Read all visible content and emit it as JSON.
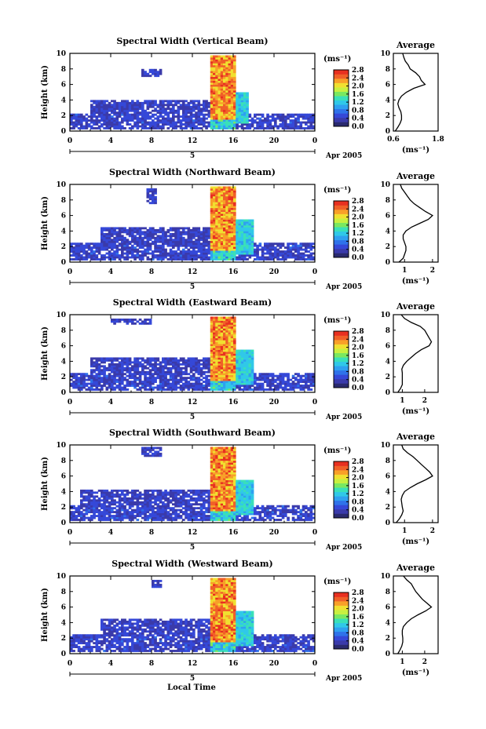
{
  "colors": {
    "scale": [
      "#2a2a6e",
      "#3a3aaa",
      "#3548d8",
      "#2f72ea",
      "#2fa0f0",
      "#30c8e8",
      "#3ae0b8",
      "#7ae860",
      "#c8f040",
      "#f0e030",
      "#f8a028",
      "#f06028",
      "#e83020"
    ],
    "ink": "#000000",
    "background": "#ffffff"
  },
  "xlabel": "Local Time",
  "ylabel": "Height (km)",
  "month_label": "Apr 2005",
  "day_label": "5",
  "avg_title": "Average",
  "avg_xlabel": "(ms⁻¹)",
  "colorbar_unit": "(ms⁻¹)",
  "colorbar_ticks": [
    "0.0",
    "0.4",
    "0.8",
    "1.2",
    "1.6",
    "2.0",
    "2.4",
    "2.8"
  ],
  "x_ticks": [
    "0",
    "4",
    "8",
    "12",
    "16",
    "20",
    "0"
  ],
  "y_ticks": [
    "0",
    "2",
    "4",
    "6",
    "8",
    "10"
  ],
  "chart_data": [
    {
      "type": "heatmap",
      "title": "Spectral Width (Vertical Beam)",
      "xlim": [
        0,
        24
      ],
      "ylim": [
        0,
        10
      ],
      "clim": [
        0.0,
        2.8
      ],
      "features": [
        {
          "t0": 0,
          "t1": 24,
          "h0": 0.3,
          "h1": 2.2,
          "level": 0.35
        },
        {
          "t0": 2,
          "t1": 17,
          "h0": 2.2,
          "h1": 4.0,
          "level": 0.3
        },
        {
          "t0": 7,
          "t1": 9,
          "h0": 7.0,
          "h1": 8.0,
          "level": 0.3
        },
        {
          "t0": 13.8,
          "t1": 16.2,
          "h0": 0.3,
          "h1": 9.8,
          "level": 2.8
        },
        {
          "t0": 16.3,
          "t1": 17.5,
          "h0": 1.0,
          "h1": 5.0,
          "level": 1.2
        }
      ],
      "average": {
        "xlim": [
          0.6,
          1.8
        ],
        "xticks": [
          "0.6",
          "1.8"
        ],
        "height": [
          0,
          0.5,
          1,
          1.5,
          2,
          2.5,
          3,
          3.5,
          4,
          4.5,
          5,
          5.5,
          6,
          6.5,
          7,
          7.5,
          8,
          8.5,
          9,
          9.5,
          10
        ],
        "value": [
          0.65,
          0.72,
          0.78,
          0.82,
          0.82,
          0.8,
          0.75,
          0.72,
          0.75,
          0.82,
          0.95,
          1.15,
          1.45,
          1.35,
          1.3,
          1.2,
          1.05,
          1.0,
          0.92,
          0.88,
          0.85
        ]
      }
    },
    {
      "type": "heatmap",
      "title": "Spectral Width (Northward Beam)",
      "xlim": [
        0,
        24
      ],
      "ylim": [
        0,
        10
      ],
      "clim": [
        0.0,
        2.8
      ],
      "features": [
        {
          "t0": 0,
          "t1": 24,
          "h0": 0.3,
          "h1": 2.6,
          "level": 0.35
        },
        {
          "t0": 3,
          "t1": 18,
          "h0": 2.6,
          "h1": 4.6,
          "level": 0.3
        },
        {
          "t0": 7.5,
          "t1": 8.5,
          "h0": 7.5,
          "h1": 9.5,
          "level": 0.3
        },
        {
          "t0": 13.8,
          "t1": 16.2,
          "h0": 0.3,
          "h1": 9.8,
          "level": 2.8
        },
        {
          "t0": 16.3,
          "t1": 18,
          "h0": 1.0,
          "h1": 5.5,
          "level": 1.2
        }
      ],
      "average": {
        "xlim": [
          0.6,
          2.2
        ],
        "xticks": [
          "1",
          "2"
        ],
        "height": [
          0,
          0.5,
          1,
          1.5,
          2,
          2.5,
          3,
          3.5,
          4,
          4.5,
          5,
          5.5,
          6,
          6.5,
          7,
          7.5,
          8,
          8.5,
          9,
          9.5,
          10
        ],
        "value": [
          0.8,
          0.95,
          1.0,
          1.05,
          1.05,
          1.0,
          0.95,
          0.95,
          1.05,
          1.25,
          1.55,
          1.85,
          2.0,
          1.75,
          1.55,
          1.35,
          1.2,
          1.1,
          1.0,
          0.9,
          0.85
        ]
      }
    },
    {
      "type": "heatmap",
      "title": "Spectral Width (Eastward Beam)",
      "xlim": [
        0,
        24
      ],
      "ylim": [
        0,
        10
      ],
      "clim": [
        0.0,
        2.8
      ],
      "features": [
        {
          "t0": 0,
          "t1": 24,
          "h0": 0.3,
          "h1": 2.6,
          "level": 0.35
        },
        {
          "t0": 2,
          "t1": 18,
          "h0": 2.6,
          "h1": 4.4,
          "level": 0.3
        },
        {
          "t0": 4,
          "t1": 8,
          "h0": 8.8,
          "h1": 9.5,
          "level": 0.3
        },
        {
          "t0": 13.8,
          "t1": 16.2,
          "h0": 0.3,
          "h1": 9.8,
          "level": 2.8
        },
        {
          "t0": 16.3,
          "t1": 18,
          "h0": 1.0,
          "h1": 5.5,
          "level": 1.2
        }
      ],
      "average": {
        "xlim": [
          0.6,
          2.6
        ],
        "xticks": [
          "1",
          "2"
        ],
        "height": [
          0,
          0.5,
          1,
          1.5,
          2,
          2.5,
          3,
          3.5,
          4,
          4.5,
          5,
          5.5,
          6,
          6.5,
          7,
          7.5,
          8,
          8.5,
          9,
          9.5,
          10
        ],
        "value": [
          0.8,
          0.92,
          1.0,
          1.0,
          1.0,
          1.0,
          0.98,
          1.05,
          1.2,
          1.4,
          1.6,
          1.85,
          2.2,
          2.3,
          2.2,
          2.1,
          2.0,
          1.8,
          1.4,
          1.1,
          0.95
        ]
      }
    },
    {
      "type": "heatmap",
      "title": "Spectral Width (Southward Beam)",
      "xlim": [
        0,
        24
      ],
      "ylim": [
        0,
        10
      ],
      "clim": [
        0.0,
        2.8
      ],
      "features": [
        {
          "t0": 0,
          "t1": 24,
          "h0": 0.3,
          "h1": 2.2,
          "level": 0.35
        },
        {
          "t0": 1,
          "t1": 18,
          "h0": 2.2,
          "h1": 4.2,
          "level": 0.3
        },
        {
          "t0": 7,
          "t1": 9,
          "h0": 8.5,
          "h1": 9.8,
          "level": 0.3
        },
        {
          "t0": 13.8,
          "t1": 16.2,
          "h0": 0.3,
          "h1": 9.8,
          "level": 2.8
        },
        {
          "t0": 16.3,
          "t1": 18,
          "h0": 1.0,
          "h1": 5.5,
          "level": 1.2
        }
      ],
      "average": {
        "xlim": [
          0.6,
          2.2
        ],
        "xticks": [
          "1",
          "2"
        ],
        "height": [
          0,
          0.5,
          1,
          1.5,
          2,
          2.5,
          3,
          3.5,
          4,
          4.5,
          5,
          5.5,
          6,
          6.5,
          7,
          7.5,
          8,
          8.5,
          9,
          9.5,
          10
        ],
        "value": [
          0.7,
          0.82,
          0.9,
          0.95,
          0.92,
          0.9,
          0.88,
          0.92,
          1.0,
          1.2,
          1.45,
          1.75,
          2.0,
          1.9,
          1.75,
          1.6,
          1.45,
          1.3,
          1.1,
          0.95,
          0.9
        ]
      }
    },
    {
      "type": "heatmap",
      "title": "Spectral Width (Westward Beam)",
      "xlim": [
        0,
        24
      ],
      "ylim": [
        0,
        10
      ],
      "clim": [
        0.0,
        2.8
      ],
      "features": [
        {
          "t0": 0,
          "t1": 24,
          "h0": 0.3,
          "h1": 2.4,
          "level": 0.35
        },
        {
          "t0": 3,
          "t1": 18,
          "h0": 2.4,
          "h1": 4.6,
          "level": 0.3
        },
        {
          "t0": 8,
          "t1": 9,
          "h0": 8.5,
          "h1": 9.5,
          "level": 0.3
        },
        {
          "t0": 13.8,
          "t1": 16.2,
          "h0": 0.3,
          "h1": 9.8,
          "level": 2.8
        },
        {
          "t0": 16.3,
          "t1": 18,
          "h0": 1.0,
          "h1": 5.5,
          "level": 1.2
        }
      ],
      "average": {
        "xlim": [
          0.6,
          2.6
        ],
        "xticks": [
          "1",
          "2"
        ],
        "height": [
          0,
          0.5,
          1,
          1.5,
          2,
          2.5,
          3,
          3.5,
          4,
          4.5,
          5,
          5.5,
          6,
          6.5,
          7,
          7.5,
          8,
          8.5,
          9,
          9.5,
          10
        ],
        "value": [
          0.8,
          0.9,
          0.98,
          1.02,
          1.02,
          1.0,
          1.0,
          1.05,
          1.2,
          1.4,
          1.7,
          2.05,
          2.3,
          2.1,
          1.9,
          1.75,
          1.6,
          1.5,
          1.4,
          1.2,
          1.05
        ]
      }
    }
  ]
}
